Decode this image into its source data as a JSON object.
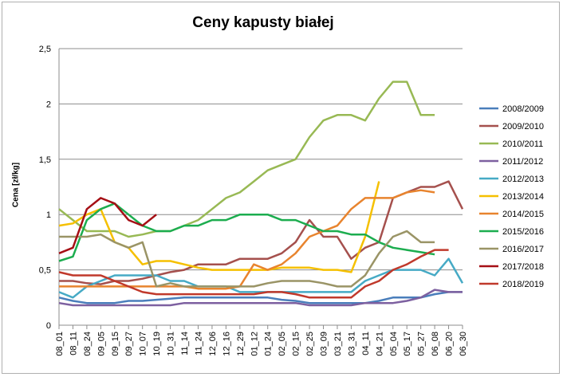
{
  "chart_data": {
    "type": "line",
    "title": "Ceny kapusty białej",
    "ylabel": "Cena [zł/kg]",
    "xlabel": "",
    "ylim": [
      0,
      2.5
    ],
    "yticks": [
      "0",
      "0,5",
      "1",
      "1,5",
      "2",
      "2,5"
    ],
    "grid": "horizontal",
    "legend_position": "right",
    "categories": [
      "08_01",
      "08_11",
      "08_24",
      "09_05",
      "09_15",
      "09_27",
      "10_07",
      "10_19",
      "10_31",
      "11_14",
      "11_24",
      "12_06",
      "12_16",
      "12_29",
      "01_12",
      "01_24",
      "02_05",
      "02_15",
      "02_25",
      "03_09",
      "03_21",
      "03_31",
      "04_11",
      "04_21",
      "05_04",
      "05_17",
      "05_27",
      "06_08",
      "06_20",
      "06_30"
    ],
    "series": [
      {
        "name": "2008/2009",
        "color": "#4a7ebb",
        "values": [
          0.25,
          0.22,
          0.2,
          0.2,
          0.2,
          0.22,
          0.22,
          0.23,
          0.24,
          0.25,
          0.25,
          0.25,
          0.25,
          0.25,
          0.25,
          0.25,
          0.23,
          0.22,
          0.2,
          0.2,
          0.2,
          0.2,
          0.2,
          0.22,
          0.25,
          0.25,
          0.25,
          0.28,
          0.3,
          0.3
        ]
      },
      {
        "name": "2009/2010",
        "color": "#a5504d",
        "values": [
          0.4,
          0.4,
          0.38,
          0.37,
          0.4,
          0.4,
          0.42,
          0.45,
          0.48,
          0.5,
          0.55,
          0.55,
          0.55,
          0.6,
          0.6,
          0.6,
          0.65,
          0.75,
          0.95,
          0.8,
          0.8,
          0.6,
          0.7,
          0.75,
          1.15,
          1.2,
          1.25,
          1.25,
          1.3,
          1.05
        ]
      },
      {
        "name": "2010/2011",
        "color": "#98b954",
        "values": [
          1.05,
          0.95,
          0.85,
          0.85,
          0.85,
          0.8,
          0.82,
          0.85,
          0.85,
          0.9,
          0.95,
          1.05,
          1.15,
          1.2,
          1.3,
          1.4,
          1.45,
          1.5,
          1.7,
          1.85,
          1.9,
          1.9,
          1.85,
          2.05,
          2.2,
          2.2,
          1.9,
          1.9,
          null,
          null
        ]
      },
      {
        "name": "2011/2012",
        "color": "#7d60a0",
        "values": [
          0.2,
          0.18,
          0.18,
          0.18,
          0.18,
          0.18,
          0.18,
          0.18,
          0.18,
          0.2,
          0.2,
          0.2,
          0.2,
          0.2,
          0.2,
          0.2,
          0.2,
          0.2,
          0.18,
          0.18,
          0.18,
          0.18,
          0.2,
          0.2,
          0.2,
          0.22,
          0.25,
          0.32,
          0.3,
          0.3
        ]
      },
      {
        "name": "2012/2013",
        "color": "#46aac5",
        "values": [
          0.3,
          0.25,
          0.35,
          0.4,
          0.45,
          0.45,
          0.45,
          0.45,
          0.4,
          0.4,
          0.35,
          0.35,
          0.35,
          0.3,
          0.3,
          0.3,
          0.3,
          0.3,
          0.3,
          0.3,
          0.3,
          0.3,
          0.4,
          0.45,
          0.5,
          0.5,
          0.5,
          0.45,
          0.6,
          0.38
        ]
      },
      {
        "name": "2013/2014",
        "color": "#f5c000",
        "values": [
          0.9,
          0.92,
          1.0,
          1.05,
          0.75,
          0.7,
          0.55,
          0.58,
          0.58,
          0.55,
          0.52,
          0.5,
          0.5,
          0.5,
          0.5,
          0.5,
          0.52,
          0.52,
          0.52,
          0.5,
          0.5,
          0.48,
          0.8,
          1.3,
          null,
          null,
          null,
          null,
          null,
          null
        ]
      },
      {
        "name": "2014/2015",
        "color": "#e8842e",
        "values": [
          0.35,
          0.35,
          0.35,
          0.35,
          0.35,
          0.35,
          0.35,
          0.35,
          0.35,
          0.35,
          0.33,
          0.33,
          0.33,
          0.35,
          0.55,
          0.5,
          0.55,
          0.65,
          0.8,
          0.85,
          0.9,
          1.05,
          1.15,
          1.15,
          1.15,
          1.2,
          1.22,
          1.2,
          null,
          null
        ]
      },
      {
        "name": "2015/2016",
        "color": "#1cad4f",
        "values": [
          0.58,
          0.62,
          0.95,
          1.05,
          1.1,
          1.0,
          0.9,
          0.85,
          0.85,
          0.9,
          0.9,
          0.95,
          0.95,
          1.0,
          1.0,
          1.0,
          0.95,
          0.95,
          0.9,
          0.85,
          0.85,
          0.82,
          0.82,
          0.75,
          0.7,
          0.68,
          0.66,
          0.64,
          null,
          null
        ]
      },
      {
        "name": "2016/2017",
        "color": "#9a9466",
        "values": [
          0.8,
          0.8,
          0.8,
          0.82,
          0.75,
          0.7,
          0.75,
          0.35,
          0.38,
          0.35,
          0.35,
          0.35,
          0.35,
          0.35,
          0.35,
          0.38,
          0.4,
          0.4,
          0.4,
          0.38,
          0.35,
          0.35,
          0.45,
          0.65,
          0.8,
          0.85,
          0.75,
          0.75,
          null,
          null
        ]
      },
      {
        "name": "2017/2018",
        "color": "#a50f15",
        "values": [
          0.65,
          0.7,
          1.05,
          1.15,
          1.1,
          0.95,
          0.9,
          1.0,
          null,
          null,
          null,
          null,
          null,
          null,
          null,
          null,
          null,
          null,
          null,
          null,
          null,
          null,
          null,
          null,
          null,
          null,
          null,
          null,
          null,
          null
        ]
      },
      {
        "name": "2018/2019",
        "color": "#c0392b",
        "values": [
          0.48,
          0.45,
          0.45,
          0.45,
          0.4,
          0.35,
          0.3,
          0.28,
          0.28,
          0.28,
          0.28,
          0.28,
          0.28,
          0.28,
          0.28,
          0.3,
          0.3,
          0.28,
          0.25,
          0.25,
          0.25,
          0.25,
          0.35,
          0.4,
          0.5,
          0.55,
          0.62,
          0.68,
          0.68,
          null
        ]
      }
    ]
  }
}
